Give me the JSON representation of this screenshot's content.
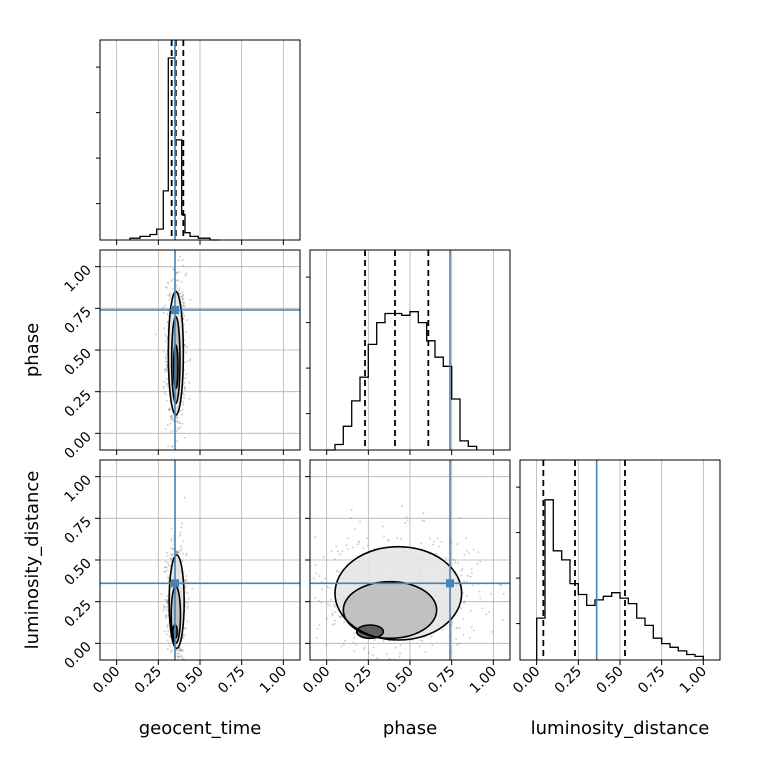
{
  "chart_data": {
    "type": "corner",
    "parameters": [
      "geocent_time",
      "phase",
      "luminosity_distance"
    ],
    "axis_labels": {
      "x": [
        "geocent_time",
        "phase",
        "luminosity_distance"
      ],
      "y": [
        "",
        "phase",
        "luminosity_distance"
      ]
    },
    "tick_labels": [
      "0.00",
      "0.25",
      "0.50",
      "0.75",
      "1.00"
    ],
    "range": [
      -0.1,
      1.1
    ],
    "truths": [
      0.35,
      0.74,
      0.36
    ],
    "truth_color": "#4682b4",
    "grid": true,
    "histograms": [
      {
        "param": "geocent_time",
        "bin_edges": [
          0.08,
          0.14,
          0.2,
          0.24,
          0.28,
          0.31,
          0.33,
          0.35,
          0.37,
          0.39,
          0.41,
          0.44,
          0.49,
          0.56,
          0.62
        ],
        "counts": [
          0.01,
          0.02,
          0.03,
          0.06,
          0.27,
          1.0,
          1.0,
          0.55,
          0.55,
          0.14,
          0.04,
          0.02,
          0.01,
          0.0
        ],
        "quantiles": [
          0.33,
          0.355,
          0.4
        ]
      },
      {
        "param": "phase",
        "bin_edges": [
          0.0,
          0.05,
          0.1,
          0.15,
          0.2,
          0.25,
          0.3,
          0.35,
          0.4,
          0.45,
          0.5,
          0.55,
          0.6,
          0.65,
          0.7,
          0.75,
          0.8,
          0.85,
          0.9
        ],
        "counts": [
          0.0,
          0.03,
          0.13,
          0.27,
          0.4,
          0.58,
          0.7,
          0.75,
          0.75,
          0.74,
          0.76,
          0.7,
          0.6,
          0.51,
          0.46,
          0.28,
          0.05,
          0.02
        ],
        "quantiles": [
          0.23,
          0.41,
          0.61
        ]
      },
      {
        "param": "luminosity_distance",
        "bin_edges": [
          0.0,
          0.05,
          0.1,
          0.15,
          0.2,
          0.25,
          0.3,
          0.35,
          0.4,
          0.45,
          0.5,
          0.55,
          0.6,
          0.65,
          0.7,
          0.75,
          0.8,
          0.85,
          0.9,
          0.95,
          1.0
        ],
        "counts": [
          0.23,
          0.88,
          0.6,
          0.55,
          0.42,
          0.36,
          0.3,
          0.33,
          0.35,
          0.37,
          0.34,
          0.31,
          0.23,
          0.19,
          0.12,
          0.09,
          0.07,
          0.05,
          0.03,
          0.02
        ],
        "quantiles": [
          0.04,
          0.23,
          0.53
        ]
      }
    ],
    "contours": [
      {
        "x": "geocent_time",
        "y": "phase",
        "levels": [
          {
            "center": [
              0.355,
              0.48
            ],
            "radius": [
              0.045,
              0.37
            ]
          },
          {
            "center": [
              0.355,
              0.44
            ],
            "radius": [
              0.025,
              0.26
            ]
          },
          {
            "center": [
              0.355,
              0.4
            ],
            "radius": [
              0.013,
              0.13
            ]
          }
        ]
      },
      {
        "x": "geocent_time",
        "y": "luminosity_distance",
        "levels": [
          {
            "center": [
              0.36,
              0.25
            ],
            "radius": [
              0.045,
              0.28
            ]
          },
          {
            "center": [
              0.355,
              0.17
            ],
            "radius": [
              0.028,
              0.17
            ]
          },
          {
            "center": [
              0.35,
              0.07
            ],
            "radius": [
              0.014,
              0.04
            ]
          }
        ]
      },
      {
        "x": "phase",
        "y": "luminosity_distance",
        "levels": [
          {
            "center": [
              0.43,
              0.3
            ],
            "radius": [
              0.38,
              0.28
            ]
          },
          {
            "center": [
              0.38,
              0.2
            ],
            "radius": [
              0.28,
              0.17
            ]
          },
          {
            "center": [
              0.26,
              0.07
            ],
            "radius": [
              0.08,
              0.04
            ]
          }
        ]
      }
    ]
  }
}
